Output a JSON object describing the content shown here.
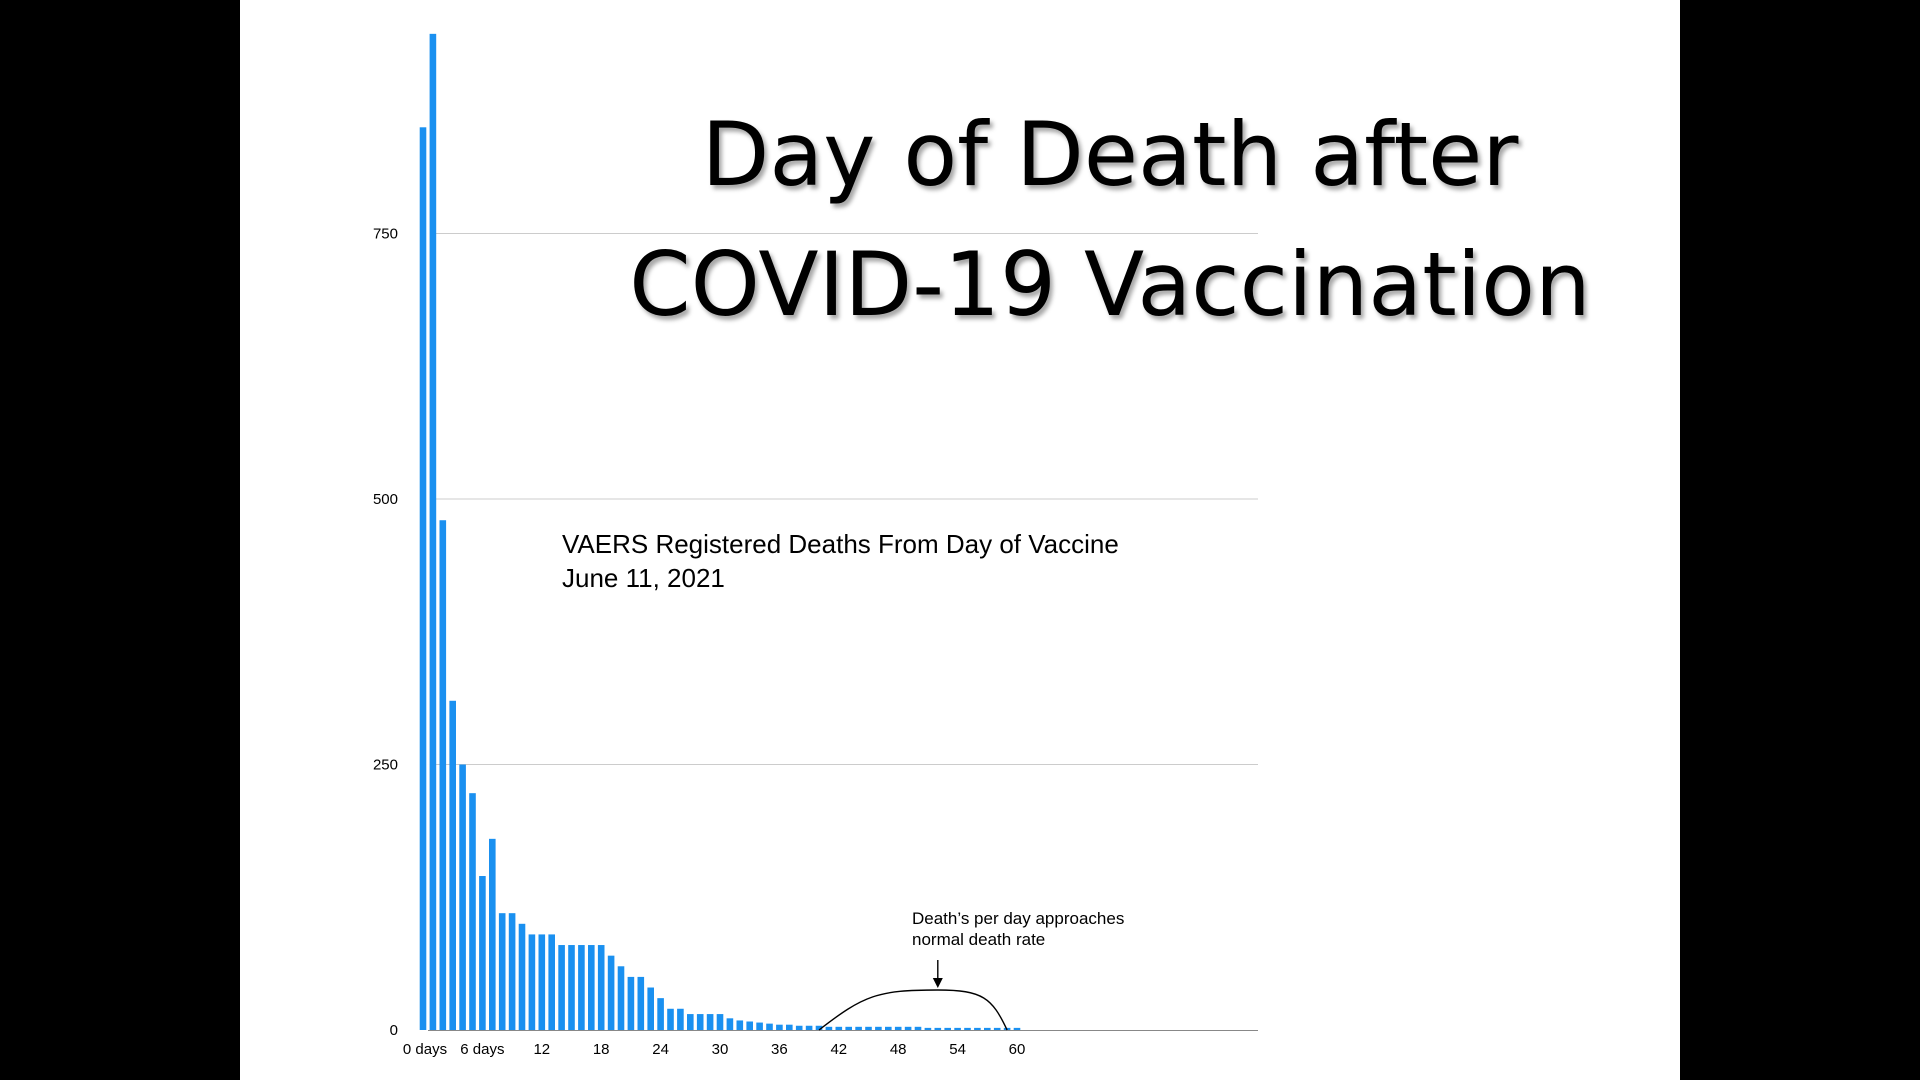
{
  "slide": {
    "title_line1": "Day of Death after",
    "title_line2": "COVID-19 Vaccination",
    "background": "#ffffff",
    "letterbox": "#000000"
  },
  "chart_data": {
    "type": "bar",
    "title": "VAERS Registered Deaths From Day of Vaccine",
    "subtitle": "June 11, 2021",
    "xlabel": "",
    "ylabel": "",
    "x_tick_labels": [
      {
        "day": 0,
        "label": "0 days"
      },
      {
        "day": 6,
        "label": "6 days"
      },
      {
        "day": 12,
        "label": "12"
      },
      {
        "day": 18,
        "label": "18"
      },
      {
        "day": 24,
        "label": "24"
      },
      {
        "day": 30,
        "label": "30"
      },
      {
        "day": 36,
        "label": "36"
      },
      {
        "day": 42,
        "label": "42"
      },
      {
        "day": 48,
        "label": "48"
      },
      {
        "day": 54,
        "label": "54"
      },
      {
        "day": 60,
        "label": "60"
      }
    ],
    "y_ticks": [
      0,
      250,
      500,
      750
    ],
    "ylim": [
      0,
      950
    ],
    "xlim": [
      0,
      60
    ],
    "grid": true,
    "bar_color": "#1a90f0",
    "days": [
      0,
      1,
      2,
      3,
      4,
      5,
      6,
      7,
      8,
      9,
      10,
      11,
      12,
      13,
      14,
      15,
      16,
      17,
      18,
      19,
      20,
      21,
      22,
      23,
      24,
      25,
      26,
      27,
      28,
      29,
      30,
      31,
      32,
      33,
      34,
      35,
      36,
      37,
      38,
      39,
      40,
      41,
      42,
      43,
      44,
      45,
      46,
      47,
      48,
      49,
      50,
      51,
      52,
      53,
      54,
      55,
      56,
      57,
      58,
      59,
      60
    ],
    "values": [
      850,
      938,
      480,
      310,
      250,
      223,
      145,
      180,
      110,
      110,
      100,
      90,
      90,
      90,
      80,
      80,
      80,
      80,
      80,
      70,
      60,
      50,
      50,
      40,
      30,
      20,
      20,
      15,
      15,
      15,
      15,
      11,
      9,
      8,
      7,
      6,
      5,
      5,
      4,
      4,
      4,
      3,
      3,
      3,
      3,
      3,
      3,
      3,
      3,
      3,
      3,
      2,
      2,
      2,
      2,
      2,
      2,
      2,
      2,
      2,
      2
    ],
    "annotation": {
      "line1": "Death’s per day approaches",
      "line2": "normal death rate",
      "arrow_day": 52,
      "arc_start_day": 40,
      "arc_peak_day": 52,
      "arc_end_day": 59
    }
  }
}
